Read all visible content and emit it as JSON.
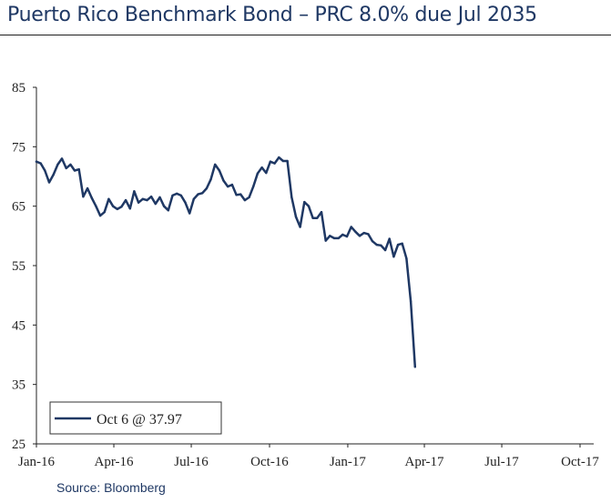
{
  "title": "Puerto Rico Benchmark Bond – PRC 8.0% due Jul 2035",
  "source": "Source: Bloomberg",
  "chart_data": {
    "type": "line",
    "title": "Puerto Rico Benchmark Bond – PRC 8.0% due Jul 2035",
    "xlabel": "",
    "ylabel": "",
    "ylim": [
      25,
      85
    ],
    "yticks": [
      "25",
      "35",
      "45",
      "55",
      "65",
      "75",
      "85"
    ],
    "xlim": [
      "2016-01-01",
      "2017-10-31"
    ],
    "xticks": [
      {
        "label": "Jan-16",
        "date": "2016-01-01"
      },
      {
        "label": "Apr-16",
        "date": "2016-04-01"
      },
      {
        "label": "Jul-16",
        "date": "2016-07-01"
      },
      {
        "label": "Oct-16",
        "date": "2016-10-01"
      },
      {
        "label": "Jan-17",
        "date": "2017-01-01"
      },
      {
        "label": "Apr-17",
        "date": "2017-04-01"
      },
      {
        "label": "Jul-17",
        "date": "2017-07-01"
      },
      {
        "label": "Oct-17",
        "date": "2017-10-01"
      }
    ],
    "grid": false,
    "legend_position": "bottom-left",
    "series": [
      {
        "name": "Oct 6 @ 37.97",
        "color": "#1f3864",
        "points": [
          [
            "2016-01-01",
            72.5
          ],
          [
            "2016-01-06",
            72.2
          ],
          [
            "2016-01-11",
            71.0
          ],
          [
            "2016-01-16",
            69.0
          ],
          [
            "2016-01-21",
            70.3
          ],
          [
            "2016-01-26",
            72.0
          ],
          [
            "2016-01-31",
            73.0
          ],
          [
            "2016-02-05",
            71.4
          ],
          [
            "2016-02-10",
            72.0
          ],
          [
            "2016-02-15",
            71.0
          ],
          [
            "2016-02-20",
            71.2
          ],
          [
            "2016-02-25",
            66.6
          ],
          [
            "2016-03-01",
            68.0
          ],
          [
            "2016-03-06",
            66.4
          ],
          [
            "2016-03-11",
            65.0
          ],
          [
            "2016-03-16",
            63.4
          ],
          [
            "2016-03-21",
            64.0
          ],
          [
            "2016-03-26",
            66.2
          ],
          [
            "2016-03-31",
            65.0
          ],
          [
            "2016-04-05",
            64.5
          ],
          [
            "2016-04-10",
            64.9
          ],
          [
            "2016-04-15",
            66.0
          ],
          [
            "2016-04-20",
            64.6
          ],
          [
            "2016-04-25",
            67.5
          ],
          [
            "2016-04-30",
            65.6
          ],
          [
            "2016-05-05",
            66.2
          ],
          [
            "2016-05-10",
            66.0
          ],
          [
            "2016-05-15",
            66.6
          ],
          [
            "2016-05-20",
            65.4
          ],
          [
            "2016-05-25",
            66.5
          ],
          [
            "2016-05-30",
            65.0
          ],
          [
            "2016-06-04",
            64.3
          ],
          [
            "2016-06-09",
            66.8
          ],
          [
            "2016-06-14",
            67.1
          ],
          [
            "2016-06-19",
            66.8
          ],
          [
            "2016-06-24",
            65.6
          ],
          [
            "2016-06-29",
            63.8
          ],
          [
            "2016-07-04",
            66.2
          ],
          [
            "2016-07-09",
            67.0
          ],
          [
            "2016-07-14",
            67.2
          ],
          [
            "2016-07-19",
            68.0
          ],
          [
            "2016-07-24",
            69.5
          ],
          [
            "2016-07-29",
            72.0
          ],
          [
            "2016-08-03",
            71.0
          ],
          [
            "2016-08-08",
            69.3
          ],
          [
            "2016-08-13",
            68.3
          ],
          [
            "2016-08-18",
            68.6
          ],
          [
            "2016-08-23",
            66.9
          ],
          [
            "2016-08-28",
            67.0
          ],
          [
            "2016-09-02",
            66.0
          ],
          [
            "2016-09-07",
            66.5
          ],
          [
            "2016-09-12",
            68.3
          ],
          [
            "2016-09-17",
            70.5
          ],
          [
            "2016-09-22",
            71.5
          ],
          [
            "2016-09-27",
            70.6
          ],
          [
            "2016-10-02",
            72.5
          ],
          [
            "2016-10-07",
            72.2
          ],
          [
            "2016-10-12",
            73.2
          ],
          [
            "2016-10-17",
            72.6
          ],
          [
            "2016-10-22",
            72.6
          ],
          [
            "2016-10-27",
            66.5
          ],
          [
            "2016-11-01",
            63.2
          ],
          [
            "2016-11-06",
            61.5
          ],
          [
            "2016-11-11",
            65.7
          ],
          [
            "2016-11-16",
            65.0
          ],
          [
            "2016-11-21",
            63.0
          ],
          [
            "2016-11-26",
            63.0
          ],
          [
            "2016-12-01",
            64.0
          ],
          [
            "2016-12-06",
            59.2
          ],
          [
            "2016-12-11",
            60.0
          ],
          [
            "2016-12-16",
            59.6
          ],
          [
            "2016-12-21",
            59.6
          ],
          [
            "2016-12-26",
            60.2
          ],
          [
            "2016-12-31",
            59.9
          ],
          [
            "2017-01-05",
            61.5
          ],
          [
            "2017-01-10",
            60.7
          ],
          [
            "2017-01-15",
            60.0
          ],
          [
            "2017-01-20",
            60.5
          ],
          [
            "2017-01-25",
            60.3
          ],
          [
            "2017-01-30",
            59.1
          ],
          [
            "2017-02-04",
            58.5
          ],
          [
            "2017-02-09",
            58.4
          ],
          [
            "2017-02-14",
            57.6
          ],
          [
            "2017-02-19",
            59.5
          ],
          [
            "2017-02-24",
            56.5
          ],
          [
            "2017-03-01",
            58.5
          ],
          [
            "2017-03-06",
            58.7
          ],
          [
            "2017-03-11",
            56.2
          ],
          [
            "2017-03-16",
            49.0
          ],
          [
            "2017-03-21",
            37.97
          ]
        ]
      }
    ]
  }
}
